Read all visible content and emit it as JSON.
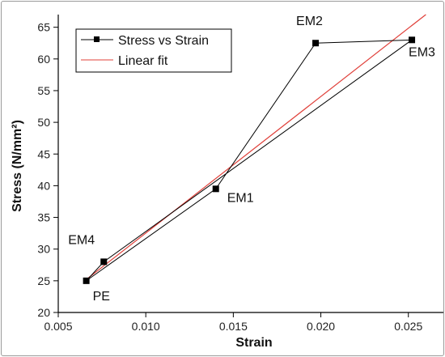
{
  "chart_data": {
    "type": "scatter",
    "xlabel": "Strain",
    "ylabel": "Stress (N/mm²)",
    "xlim": [
      0.005,
      0.027
    ],
    "ylim": [
      20,
      67
    ],
    "xticks": [
      0.005,
      0.01,
      0.015,
      0.02,
      0.025
    ],
    "xtick_labels": [
      "0.005",
      "0.010",
      "0.015",
      "0.020",
      "0.025"
    ],
    "yticks": [
      20,
      25,
      30,
      35,
      40,
      45,
      50,
      55,
      60,
      65
    ],
    "ytick_labels": [
      "20",
      "25",
      "30",
      "35",
      "40",
      "45",
      "50",
      "55",
      "60",
      "65"
    ],
    "grid": false,
    "legend_position": "top-left",
    "series": [
      {
        "name": "Stress  vs Strain",
        "kind": "line+markers",
        "color": "#000000",
        "points": [
          {
            "x": 0.0066,
            "y": 25.0,
            "label": "PE"
          },
          {
            "x": 0.014,
            "y": 39.5,
            "label": "EM1"
          },
          {
            "x": 0.0197,
            "y": 62.5,
            "label": "EM2"
          },
          {
            "x": 0.0252,
            "y": 63.0,
            "label": "EM3"
          },
          {
            "x": 0.0076,
            "y": 28.0,
            "label": "EM4"
          }
        ]
      },
      {
        "name": "Linear fit",
        "kind": "line",
        "color": "#e0403a",
        "points": [
          {
            "x": 0.0066,
            "y": 25.2
          },
          {
            "x": 0.026,
            "y": 67.0
          }
        ]
      }
    ]
  }
}
